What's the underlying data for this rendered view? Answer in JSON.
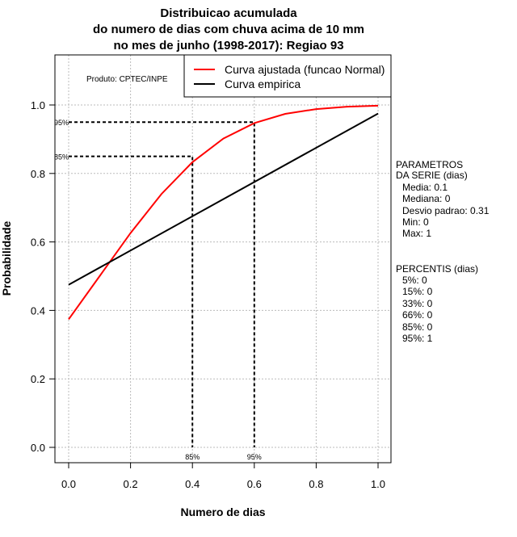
{
  "chart_data": {
    "type": "line",
    "title": [
      "Distribuicao acumulada",
      "do numero de dias com chuva acima de 10 mm",
      "no mes de junho (1998-2017): Regiao 93"
    ],
    "xlabel": "Numero de dias",
    "ylabel": "Probabilidade",
    "xlim": [
      -0.04,
      1.04
    ],
    "ylim": [
      -0.045,
      1.15
    ],
    "grid": true,
    "xticks": [
      "0.0",
      "0.2",
      "0.4",
      "0.6",
      "0.8",
      "1.0"
    ],
    "yticks": [
      "0.0",
      "0.2",
      "0.4",
      "0.6",
      "0.8",
      "1.0"
    ],
    "legend_placement": "top-right",
    "series": [
      {
        "name": "Curva ajustada (funcao Normal)",
        "color": "#ff0000",
        "x": [
          0,
          0.1,
          0.2,
          0.3,
          0.4,
          0.5,
          0.6,
          0.7,
          0.8,
          0.9,
          1.0
        ],
        "y": [
          0.374,
          0.5,
          0.626,
          0.74,
          0.833,
          0.902,
          0.947,
          0.974,
          0.988,
          0.995,
          0.998
        ]
      },
      {
        "name": "Curva empirica",
        "color": "#000000",
        "x": [
          0,
          1.0
        ],
        "y": [
          0.475,
          0.975
        ]
      }
    ],
    "reference_lines": [
      {
        "label": "95%",
        "x": 0.6,
        "y": 0.95
      },
      {
        "label": "85%",
        "x": 0.4,
        "y": 0.85
      }
    ],
    "annotation": "Produto: CPTEC/INPE"
  },
  "side_panel": {
    "params_title": [
      "PARAMETROS",
      "DA SERIE (dias)"
    ],
    "params": [
      "Media: 0.1",
      "Mediana: 0",
      "Desvio padrao: 0.31",
      "Min: 0",
      "Max: 1"
    ],
    "percentis_title": "PERCENTIS (dias)",
    "percentis": [
      "5%: 0",
      "15%: 0",
      "33%: 0",
      "66%: 0",
      "85%: 0",
      "95%: 1"
    ]
  }
}
